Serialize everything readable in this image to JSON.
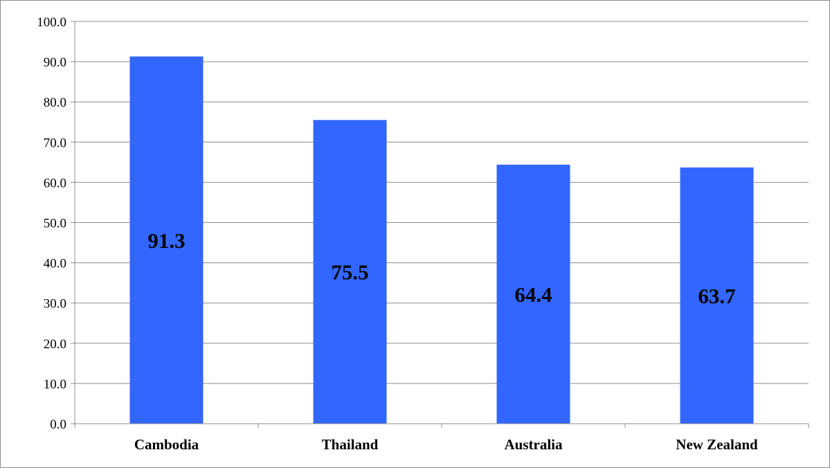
{
  "chart_data": {
    "type": "bar",
    "categories": [
      "Cambodia",
      "Thailand",
      "Australia",
      "New Zealand"
    ],
    "values": [
      91.3,
      75.5,
      64.4,
      63.7
    ],
    "data_labels": [
      "91.3",
      "75.5",
      "64.4",
      "63.7"
    ],
    "title": "",
    "xlabel": "",
    "ylabel": "",
    "ylim": [
      0,
      100
    ],
    "y_ticks": [
      "0.0",
      "10.0",
      "20.0",
      "30.0",
      "40.0",
      "50.0",
      "60.0",
      "70.0",
      "80.0",
      "90.0",
      "100.0"
    ],
    "grid": true,
    "legend": "none",
    "colors": {
      "bar": "#3366ff",
      "grid": "#8c8c8c",
      "axis": "#8c8c8c"
    }
  }
}
